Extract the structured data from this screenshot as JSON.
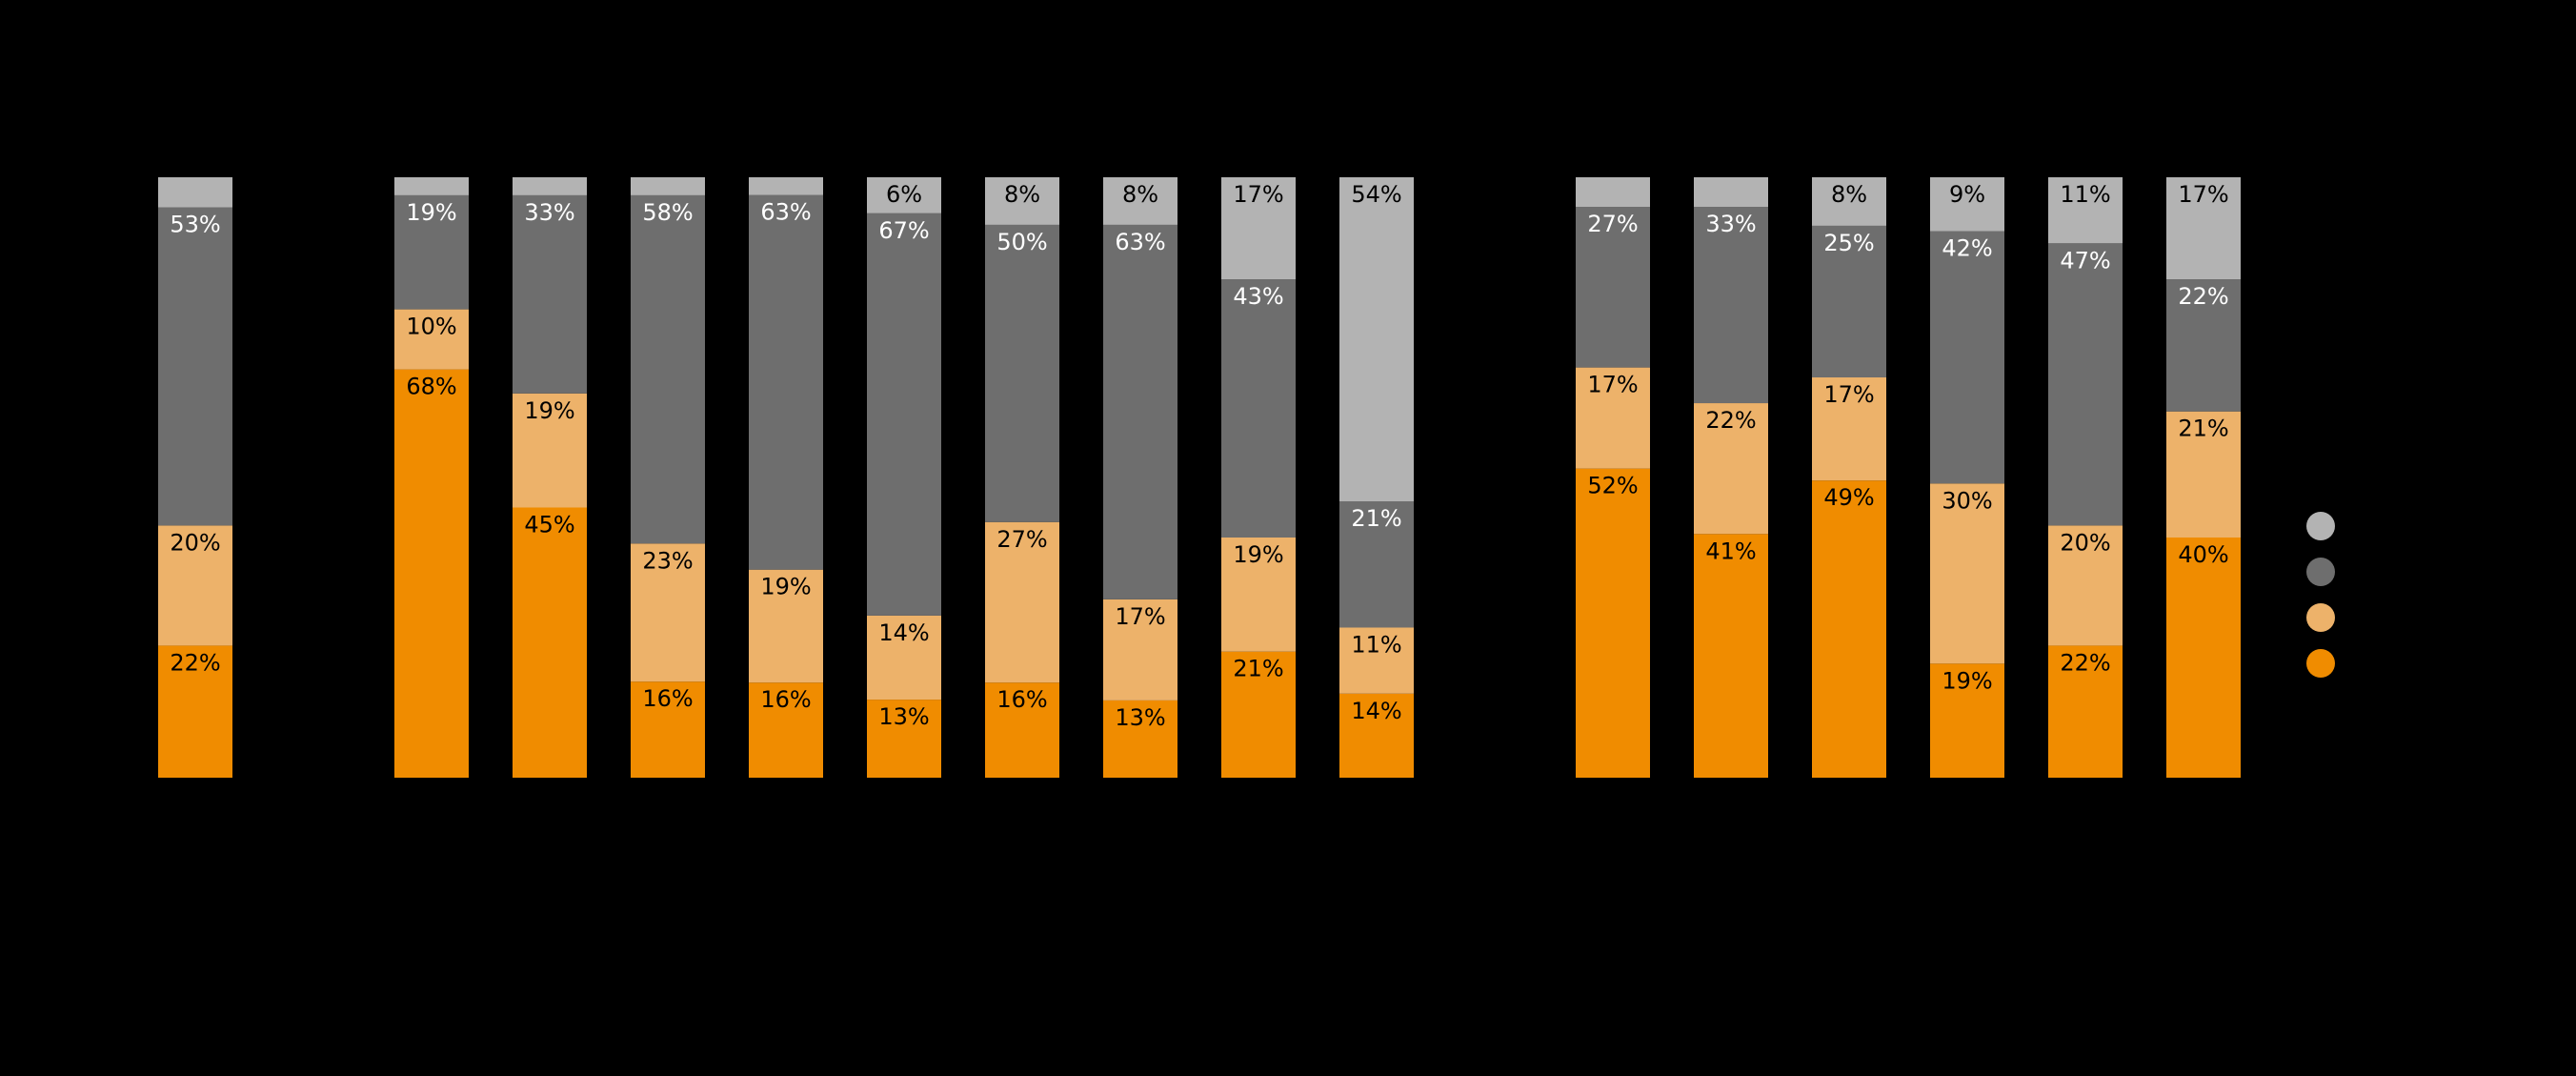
{
  "chart_data": {
    "type": "bar",
    "stacked": true,
    "normalized": true,
    "ylim": [
      0,
      100
    ],
    "legend_position": "right",
    "colors": {
      "series_a": "#F08C00",
      "series_b": "#EDB26A",
      "series_c": "#6E6E6E",
      "series_d": "#B3B3B3"
    },
    "label_colors": {
      "series_a": "#000000",
      "series_b": "#000000",
      "series_c": "#FFFFFF",
      "series_d": "#000000"
    },
    "series_keys": [
      "series_a",
      "series_b",
      "series_c",
      "series_d"
    ],
    "groups": [
      [
        0
      ],
      [
        1,
        2,
        3,
        4,
        5,
        6,
        7,
        8,
        9
      ],
      [
        10,
        11,
        12,
        13,
        14,
        15
      ]
    ],
    "bars": [
      {
        "series_a": 22,
        "series_b": 20,
        "series_c": 53,
        "series_d": 5,
        "labels": {
          "series_a": "22%",
          "series_b": "20%",
          "series_c": "53%",
          "series_d": ""
        }
      },
      {
        "series_a": 68,
        "series_b": 10,
        "series_c": 19,
        "series_d": 3,
        "labels": {
          "series_a": "68%",
          "series_b": "10%",
          "series_c": "19%",
          "series_d": ""
        }
      },
      {
        "series_a": 45,
        "series_b": 19,
        "series_c": 33,
        "series_d": 3,
        "labels": {
          "series_a": "45%",
          "series_b": "19%",
          "series_c": "33%",
          "series_d": ""
        }
      },
      {
        "series_a": 16,
        "series_b": 23,
        "series_c": 58,
        "series_d": 3,
        "labels": {
          "series_a": "16%",
          "series_b": "23%",
          "series_c": "58%",
          "series_d": ""
        }
      },
      {
        "series_a": 16,
        "series_b": 19,
        "series_c": 63,
        "series_d": 3,
        "labels": {
          "series_a": "16%",
          "series_b": "19%",
          "series_c": "63%",
          "series_d": ""
        }
      },
      {
        "series_a": 13,
        "series_b": 14,
        "series_c": 67,
        "series_d": 6,
        "labels": {
          "series_a": "13%",
          "series_b": "14%",
          "series_c": "67%",
          "series_d": "6%"
        }
      },
      {
        "series_a": 16,
        "series_b": 27,
        "series_c": 50,
        "series_d": 8,
        "labels": {
          "series_a": "16%",
          "series_b": "27%",
          "series_c": "50%",
          "series_d": "8%"
        }
      },
      {
        "series_a": 13,
        "series_b": 17,
        "series_c": 63,
        "series_d": 8,
        "labels": {
          "series_a": "13%",
          "series_b": "17%",
          "series_c": "63%",
          "series_d": "8%"
        }
      },
      {
        "series_a": 21,
        "series_b": 19,
        "series_c": 43,
        "series_d": 17,
        "labels": {
          "series_a": "21%",
          "series_b": "19%",
          "series_c": "43%",
          "series_d": "17%"
        }
      },
      {
        "series_a": 14,
        "series_b": 11,
        "series_c": 21,
        "series_d": 54,
        "labels": {
          "series_a": "14%",
          "series_b": "11%",
          "series_c": "21%",
          "series_d": "54%"
        }
      },
      {
        "series_a": 52,
        "series_b": 17,
        "series_c": 27,
        "series_d": 5,
        "labels": {
          "series_a": "52%",
          "series_b": "17%",
          "series_c": "27%",
          "series_d": ""
        }
      },
      {
        "series_a": 41,
        "series_b": 22,
        "series_c": 33,
        "series_d": 5,
        "labels": {
          "series_a": "41%",
          "series_b": "22%",
          "series_c": "33%",
          "series_d": ""
        }
      },
      {
        "series_a": 49,
        "series_b": 17,
        "series_c": 25,
        "series_d": 8,
        "labels": {
          "series_a": "49%",
          "series_b": "17%",
          "series_c": "25%",
          "series_d": "8%"
        }
      },
      {
        "series_a": 19,
        "series_b": 30,
        "series_c": 42,
        "series_d": 9,
        "labels": {
          "series_a": "19%",
          "series_b": "30%",
          "series_c": "42%",
          "series_d": "9%"
        }
      },
      {
        "series_a": 22,
        "series_b": 20,
        "series_c": 47,
        "series_d": 11,
        "labels": {
          "series_a": "22%",
          "series_b": "20%",
          "series_c": "47%",
          "series_d": "11%"
        }
      },
      {
        "series_a": 40,
        "series_b": 21,
        "series_c": 22,
        "series_d": 17,
        "labels": {
          "series_a": "40%",
          "series_b": "21%",
          "series_c": "22%",
          "series_d": "17%"
        }
      }
    ],
    "legend": [
      "series_d",
      "series_c",
      "series_b",
      "series_a"
    ]
  }
}
